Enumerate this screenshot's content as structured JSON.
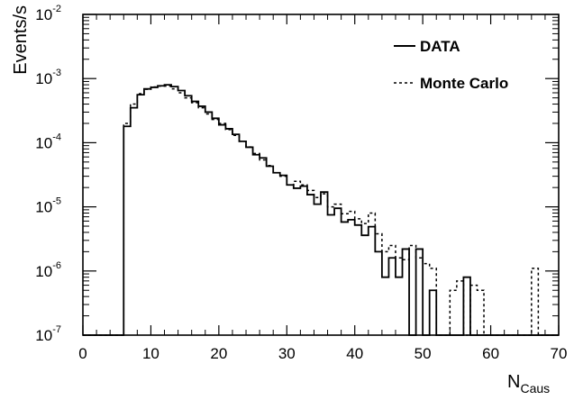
{
  "chart_data": {
    "type": "histogram",
    "title": "",
    "xlabel": "N",
    "xlabel_sub": "Caus",
    "ylabel": "Events/s",
    "xlim": [
      0,
      70
    ],
    "ylim": [
      1e-07,
      0.01
    ],
    "yscale": "log",
    "grid": false,
    "legend_position": "top-right",
    "x_ticks": [
      "0",
      "10",
      "20",
      "30",
      "40",
      "50",
      "60",
      "70"
    ],
    "y_ticks": [
      {
        "base": "10",
        "exp": "-7"
      },
      {
        "base": "10",
        "exp": "-6"
      },
      {
        "base": "10",
        "exp": "-5"
      },
      {
        "base": "10",
        "exp": "-4"
      },
      {
        "base": "10",
        "exp": "-3"
      },
      {
        "base": "10",
        "exp": "-2"
      }
    ],
    "bin_edges_start": 6,
    "bin_width": 1,
    "series": [
      {
        "name": "DATA",
        "style": "solid",
        "values": [
          0.00018,
          0.00035,
          0.00056,
          0.00069,
          0.00073,
          0.00077,
          0.0008,
          0.00075,
          0.00065,
          0.00054,
          0.00044,
          0.00037,
          0.0003,
          0.00024,
          0.00019,
          0.000165,
          0.000135,
          0.000105,
          8.5e-05,
          6.5e-05,
          5.8e-05,
          4.3e-05,
          3.4e-05,
          3.1e-05,
          2.2e-05,
          1.95e-05,
          2.1e-05,
          1.55e-05,
          1.1e-05,
          1.7e-05,
          7.5e-06,
          9.5e-06,
          5.8e-06,
          6.3e-06,
          5.2e-06,
          3.6e-06,
          4.9e-06,
          2e-06,
          8e-07,
          1.6e-06,
          8e-07,
          2.2e-06,
          1e-07,
          2.2e-06,
          1e-07,
          5e-07,
          1e-07,
          1e-07,
          1e-07,
          1e-07,
          8e-07,
          1e-07,
          1e-07,
          1e-07,
          1e-07,
          1e-07,
          1e-07,
          1e-07,
          1e-07,
          1e-07,
          1e-07,
          1e-07,
          1e-07,
          1e-07
        ]
      },
      {
        "name": "Monte Carlo",
        "style": "dashed",
        "values": [
          0.0002,
          0.0004,
          0.00058,
          0.00068,
          0.00074,
          0.00076,
          0.00076,
          0.00069,
          0.0006,
          0.0005,
          0.00042,
          0.00035,
          0.00028,
          0.00023,
          0.0002,
          0.00016,
          0.00013,
          0.000105,
          8.6e-05,
          6.8e-05,
          5.4e-05,
          4.4e-05,
          3.4e-05,
          3e-05,
          2.2e-05,
          2.5e-05,
          2.2e-05,
          1.8e-05,
          1.4e-05,
          1.6e-05,
          1e-05,
          1.1e-05,
          7.8e-06,
          8.5e-06,
          6.5e-06,
          5.5e-06,
          8e-06,
          3.8e-06,
          2e-06,
          2.5e-06,
          1.6e-06,
          1.5e-06,
          2.5e-06,
          1.6e-06,
          1.3e-06,
          1.1e-06,
          1e-07,
          1e-07,
          5e-07,
          7e-07,
          1e-07,
          6e-07,
          5e-07,
          1e-07,
          1e-07,
          1e-07,
          1e-07,
          1e-07,
          1e-07,
          1e-07,
          1.1e-06,
          1e-07,
          1e-07,
          1e-07
        ]
      }
    ]
  }
}
